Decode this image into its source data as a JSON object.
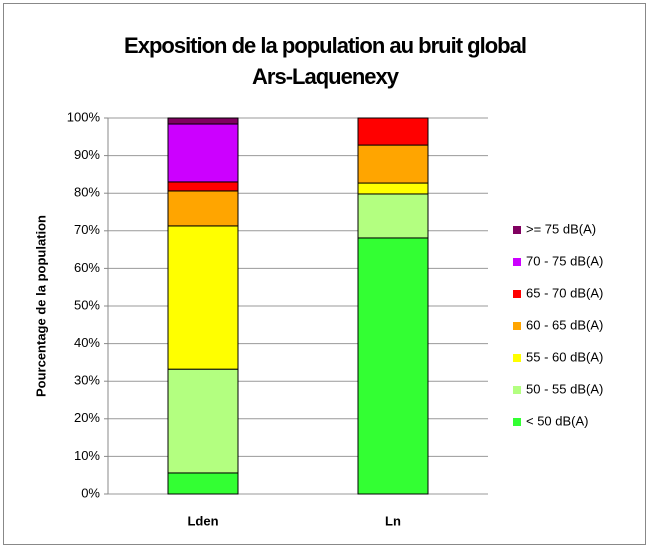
{
  "chart_data": {
    "type": "stacked_bar",
    "title": "Exposition de la population au bruit global",
    "subtitle": "Ars-Laquenexy",
    "y_label": "Pourcentage de la population",
    "categories": [
      "Lden",
      "Ln"
    ],
    "series": [
      {
        "name": "< 50 dB(A)",
        "color": "#33ff33",
        "values": [
          5.6,
          68.1
        ]
      },
      {
        "name": "50 - 55 dB(A)",
        "color": "#b3ff80",
        "values": [
          27.6,
          11.7
        ]
      },
      {
        "name": "55 - 60 dB(A)",
        "color": "#ffff00",
        "values": [
          38.1,
          2.9
        ]
      },
      {
        "name": "60 - 65 dB(A)",
        "color": "#ffa500",
        "values": [
          9.3,
          10.1
        ]
      },
      {
        "name": "65 - 70 dB(A)",
        "color": "#ff0000",
        "values": [
          2.4,
          7.2
        ]
      },
      {
        "name": "70 - 75 dB(A)",
        "color": "#cc00ff",
        "values": [
          15.4,
          0
        ]
      },
      {
        "name": ">= 75 dB(A)",
        "color": "#800060",
        "values": [
          1.6,
          0
        ]
      }
    ],
    "ylim": [
      0,
      100
    ],
    "yticks": [
      {
        "value": 0,
        "label": "0%"
      },
      {
        "value": 10,
        "label": "10%"
      },
      {
        "value": 20,
        "label": "20%"
      },
      {
        "value": 30,
        "label": "30%"
      },
      {
        "value": 40,
        "label": "40%"
      },
      {
        "value": 50,
        "label": "50%"
      },
      {
        "value": 60,
        "label": "60%"
      },
      {
        "value": 70,
        "label": "70%"
      },
      {
        "value": 80,
        "label": "80%"
      },
      {
        "value": 90,
        "label": "90%"
      },
      {
        "value": 100,
        "label": "100%"
      }
    ],
    "grid": true,
    "legend": "right"
  }
}
